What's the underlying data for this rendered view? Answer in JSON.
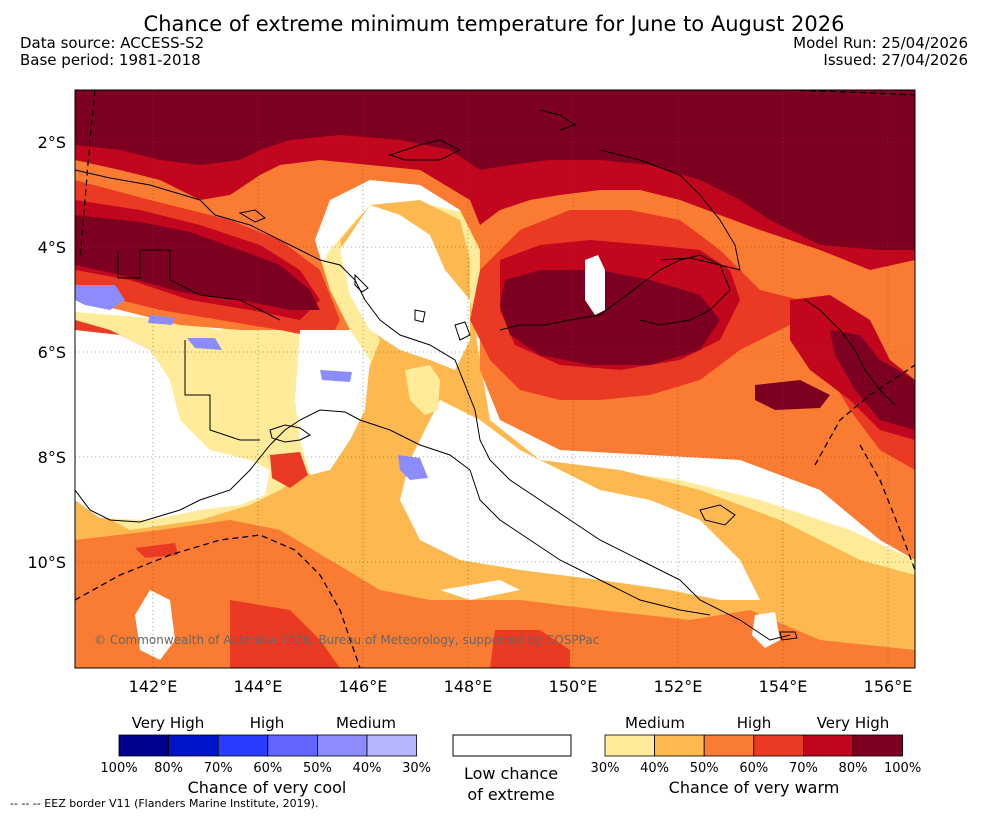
{
  "title": "Chance of extreme minimum temperature for June to August 2026",
  "data_source": "Data source: ACCESS-S2",
  "base_period": "Base period: 1981-2018",
  "model_run": "Model Run: 25/04/2026",
  "issued": "Issued: 27/04/2026",
  "copyright": "© Commonwealth of Australia 2026, Bureau of Meteorology, supported by COSPPac",
  "eez_note": "--  --  -- EEZ border V11 (Flanders Marine Institute, 2019).",
  "map": {
    "lat_labels": [
      "2°S",
      "4°S",
      "6°S",
      "8°S",
      "10°S"
    ],
    "lon_labels": [
      "142°E",
      "144°E",
      "146°E",
      "148°E",
      "150°E",
      "152°E",
      "154°E",
      "156°E"
    ]
  },
  "legend": {
    "cool": {
      "headers": [
        "Very High",
        "High",
        "Medium"
      ],
      "ticks": [
        "100%",
        "80%",
        "70%",
        "60%",
        "50%",
        "40%",
        "30%"
      ],
      "colors": [
        "#00008f",
        "#0014c8",
        "#2a3cff",
        "#6464ff",
        "#8c8cff",
        "#b4b4ff"
      ],
      "caption": "Chance of very cool"
    },
    "low": {
      "caption_1": "Low chance",
      "caption_2": "of extreme",
      "color": "#ffffff"
    },
    "warm": {
      "headers": [
        "Medium",
        "High",
        "Very High"
      ],
      "ticks": [
        "30%",
        "40%",
        "50%",
        "60%",
        "70%",
        "80%",
        "100%"
      ],
      "colors": [
        "#ffeb99",
        "#fdb850",
        "#fa7c33",
        "#ea3a24",
        "#c2061e",
        "#7d0021"
      ],
      "caption": "Chance of very warm"
    }
  }
}
